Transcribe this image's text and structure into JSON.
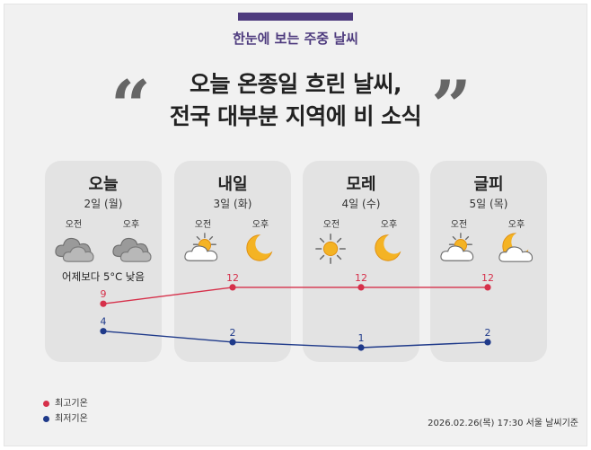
{
  "header": {
    "subtitle": "한눈에 보는 주중 날씨",
    "title_line1": "오늘 온종일 흐린 날씨,",
    "title_line2": "전국 대부분 지역에 비 소식",
    "quote_open": "“",
    "quote_close": "”",
    "accent_color": "#4e3b7e"
  },
  "days": [
    {
      "name": "오늘",
      "date": "2일 (월)",
      "am_label": "오전",
      "pm_label": "오후",
      "am_icon": "cloudy-icon",
      "pm_icon": "cloudy-icon",
      "note": "어제보다 5°C 낮음"
    },
    {
      "name": "내일",
      "date": "3일 (화)",
      "am_label": "오전",
      "pm_label": "오후",
      "am_icon": "partly-cloudy-icon",
      "pm_icon": "moon-icon",
      "note": ""
    },
    {
      "name": "모레",
      "date": "4일 (수)",
      "am_label": "오전",
      "pm_label": "오후",
      "am_icon": "sun-icon",
      "pm_icon": "moon-icon",
      "note": ""
    },
    {
      "name": "글피",
      "date": "5일 (목)",
      "am_label": "오전",
      "pm_label": "오후",
      "am_icon": "partly-cloudy-icon",
      "pm_icon": "moon-cloud-icon",
      "note": ""
    }
  ],
  "chart_data": {
    "type": "line",
    "categories": [
      "오늘",
      "내일",
      "모레",
      "글피"
    ],
    "series": [
      {
        "name": "최고기온",
        "values": [
          9,
          12,
          12,
          12
        ],
        "color": "#d6304a"
      },
      {
        "name": "최저기온",
        "values": [
          4,
          2,
          1,
          2
        ],
        "color": "#1f3a8a"
      }
    ],
    "ylim": [
      0,
      13
    ]
  },
  "legend": {
    "high": "최고기온",
    "low": "최저기온"
  },
  "footer": "2026.02.26(목) 17:30 서울 날씨기준"
}
